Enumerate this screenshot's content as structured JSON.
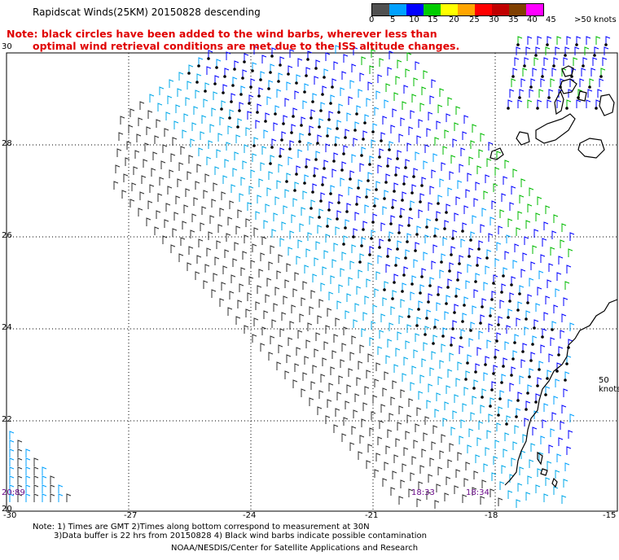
{
  "title": "Rapidscat Winds(25KM) 20150828 descending",
  "note_line1": "Note: black circles have been added to the wind barbs, wherever less than",
  "note_line2": "optimal wind retrieval conditions are met due to the ISS altitude changes.",
  "scale": {
    "labels": [
      "0",
      "5",
      "10",
      "15",
      "20",
      "25",
      "30",
      "35",
      "40",
      "45",
      ">50 knots"
    ],
    "colors": [
      "#505050",
      "#00a0ff",
      "#0000ff",
      "#00cc00",
      "#ffff00",
      "#ffa500",
      "#ff0000",
      "#c00000",
      "#804000",
      "#ff00ff",
      "#8000c0"
    ]
  },
  "knots_label": "50 knots",
  "lat_labels": [
    "30",
    "28",
    "26",
    "24",
    "22",
    "20"
  ],
  "lon_labels": [
    "-30",
    "-27",
    "-24",
    "-21",
    "-18",
    "-15"
  ],
  "times": [
    "20:89",
    "18:33",
    "18:34"
  ],
  "footer": {
    "line1": "Note: 1) Times are GMT 2)Times along bottom correspond to measurement at 30N",
    "line2": "3)Data buffer is 22 hrs from 20150828 4) Black wind barbs indicate possible contamination",
    "line3": "NOAA/NESDIS/Center for Satellite Applications and Research"
  }
}
